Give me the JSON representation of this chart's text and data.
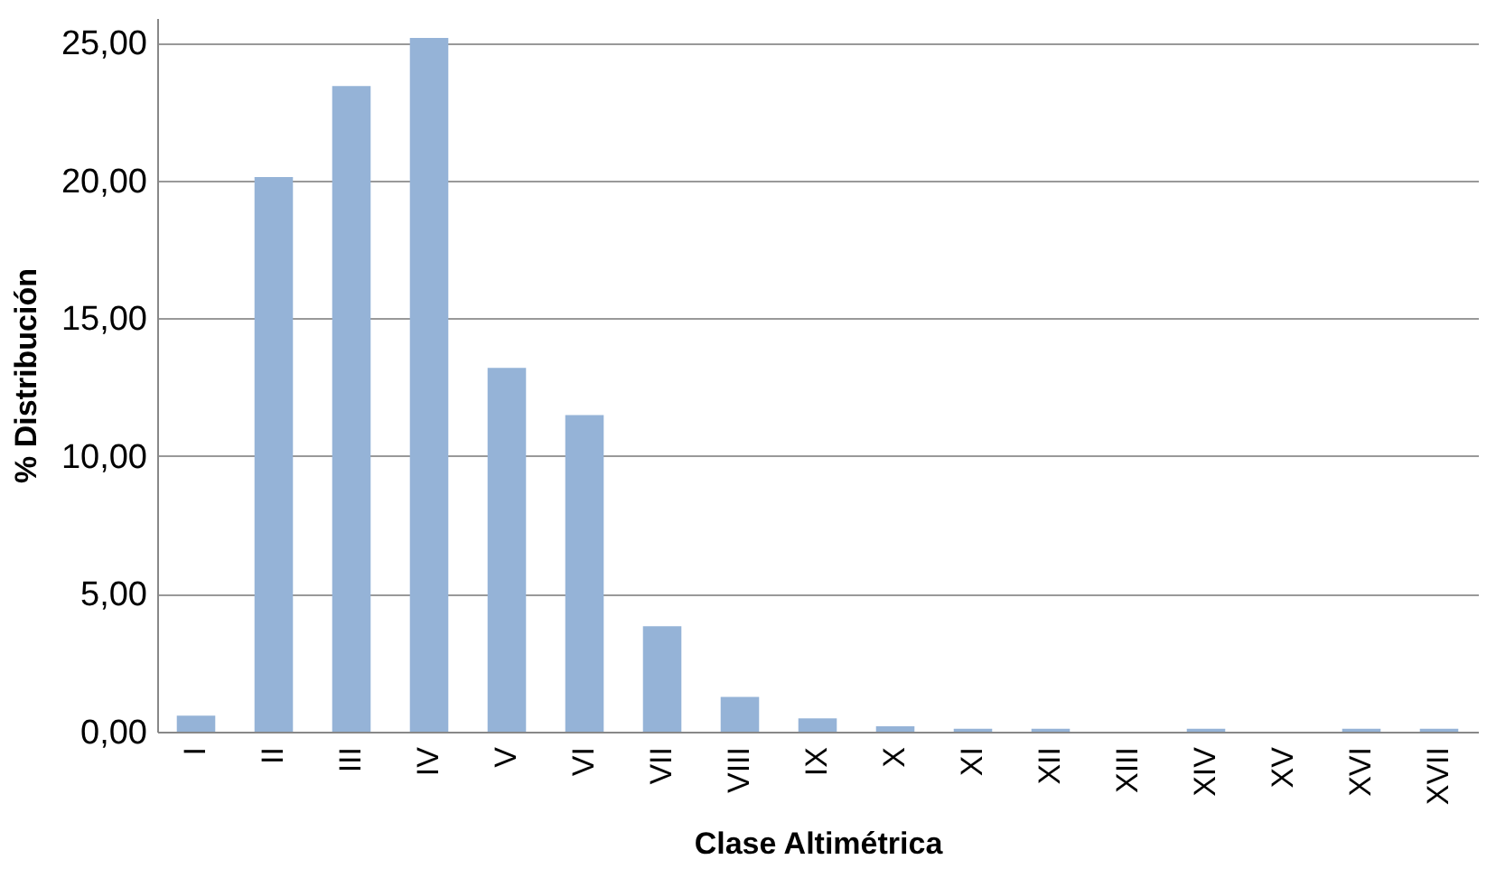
{
  "chart_data": {
    "type": "bar",
    "xlabel": "Clase Altimétrica",
    "ylabel": "% Distribución",
    "categories": [
      "I",
      "II",
      "III",
      "IV",
      "V",
      "VI",
      "VII",
      "VIII",
      "IX",
      "X",
      "XI",
      "XII",
      "XIII",
      "XIV",
      "XV",
      "XVI",
      "XVII"
    ],
    "values": [
      0.58,
      20.13,
      23.43,
      25.18,
      13.2,
      11.49,
      3.83,
      1.26,
      0.48,
      0.2,
      0.11,
      0.11,
      0,
      0.11,
      0,
      0.11,
      0.11
    ],
    "color": "#95b3d7",
    "ylim": [
      0,
      25.9
    ],
    "yticks": [
      {
        "value": 0,
        "label": "0,00"
      },
      {
        "value": 5,
        "label": "5,00"
      },
      {
        "value": 10,
        "label": "10,00"
      },
      {
        "value": 15,
        "label": "15,00"
      },
      {
        "value": 20,
        "label": "20,00"
      },
      {
        "value": 25,
        "label": "25,00"
      }
    ],
    "grid": "y"
  }
}
